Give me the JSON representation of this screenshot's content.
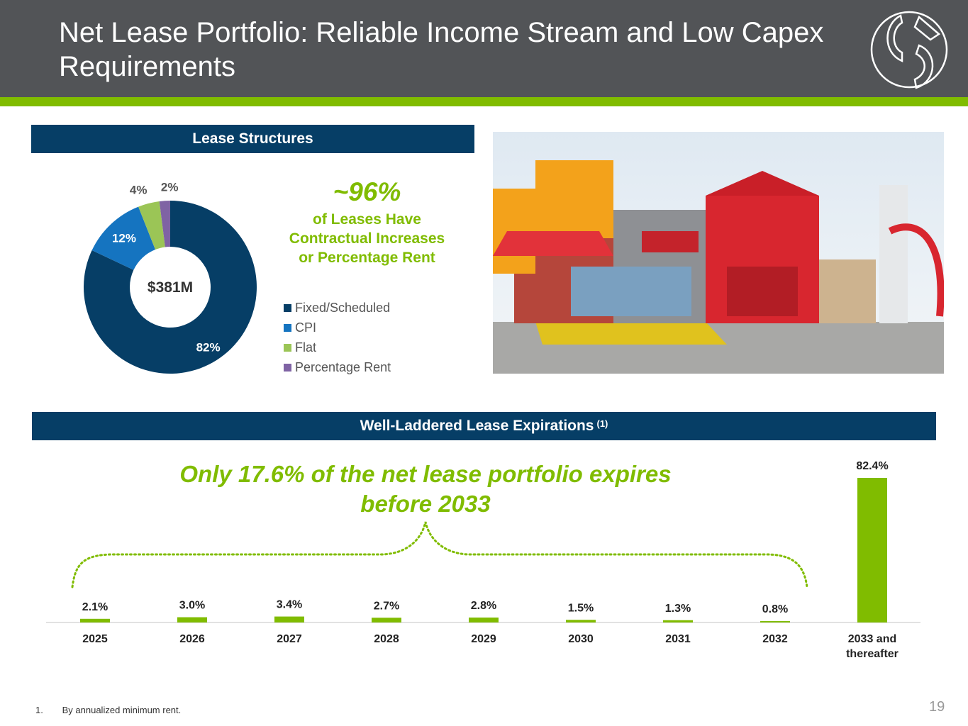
{
  "title": "Net Lease Portfolio: Reliable Income Stream and Low Capex Requirements",
  "lease_structures": {
    "header": "Lease Structures",
    "center_label": "$381M",
    "stat_pct": "~96%",
    "stat_text": "of Leases Have Contractual Increases or Percentage Rent",
    "legend": [
      {
        "label": "Fixed/Scheduled",
        "color": "#063e66"
      },
      {
        "label": "CPI",
        "color": "#1574c0"
      },
      {
        "label": "Flat",
        "color": "#9bc556"
      },
      {
        "label": "Percentage Rent",
        "color": "#7f63a4"
      }
    ]
  },
  "expirations": {
    "header": "Well-Laddered Lease Expirations",
    "header_sup": "(1)",
    "callout": "Only 17.6% of the net lease portfolio expires before 2033"
  },
  "footnote": {
    "num": "1.",
    "text": "By annualized minimum rent."
  },
  "page_number": "19",
  "chart_data": [
    {
      "type": "pie",
      "title": "",
      "categories": [
        "Fixed/Scheduled",
        "CPI",
        "Flat",
        "Percentage Rent"
      ],
      "values": [
        82,
        12,
        4,
        2
      ],
      "labels": [
        "82%",
        "12%",
        "4%",
        "2%"
      ],
      "colors": [
        "#063e66",
        "#1574c0",
        "#9bc556",
        "#7f63a4"
      ],
      "center_label": "$381M",
      "legend": "right"
    },
    {
      "type": "bar",
      "title": "",
      "categories": [
        "2025",
        "2026",
        "2027",
        "2028",
        "2029",
        "2030",
        "2031",
        "2032",
        "2033 and thereafter"
      ],
      "values": [
        2.1,
        3.0,
        3.4,
        2.7,
        2.8,
        1.5,
        1.3,
        0.8,
        82.4
      ],
      "labels": [
        "2.1%",
        "3.0%",
        "3.4%",
        "2.7%",
        "2.8%",
        "1.5%",
        "1.3%",
        "0.8%",
        "82.4%"
      ],
      "color": "#80bc00",
      "xlabel": "",
      "ylabel": "",
      "ylim": [
        0,
        82.4
      ],
      "grid": false
    }
  ]
}
